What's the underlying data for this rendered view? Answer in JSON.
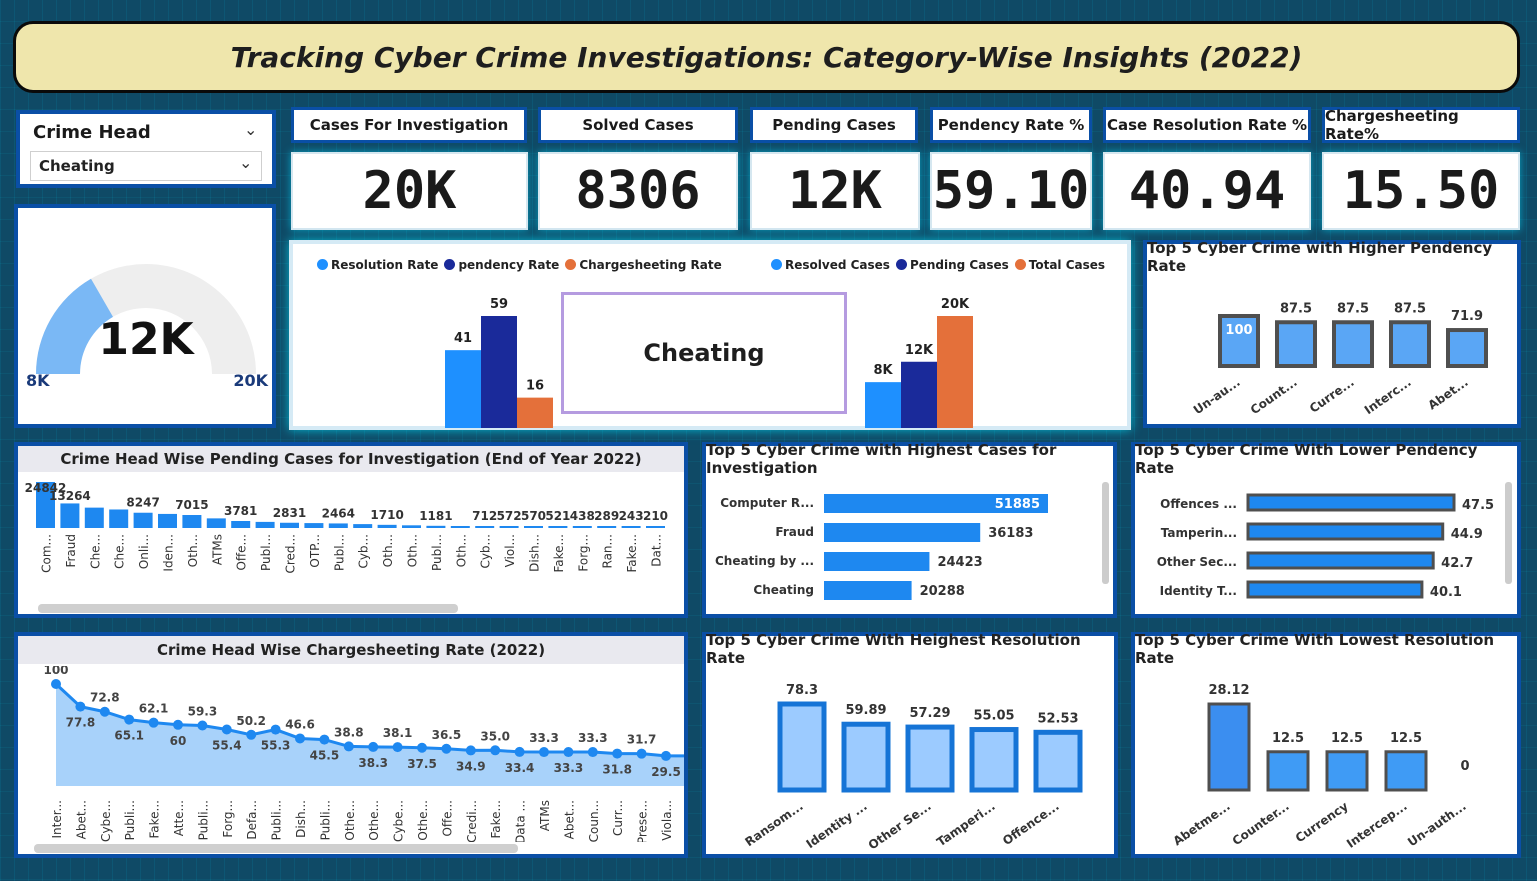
{
  "title": "Tracking Cyber Crime Investigations: Category-Wise Insights (2022)",
  "slicer": {
    "label": "Crime Head",
    "selected": "Cheating"
  },
  "kpis": [
    {
      "label": "Cases For Investigation",
      "value": "20K"
    },
    {
      "label": "Solved Cases",
      "value": "8306"
    },
    {
      "label": "Pending Cases",
      "value": "12K"
    },
    {
      "label": "Pendency Rate %",
      "value": "59.10"
    },
    {
      "label": "Case Resolution Rate %",
      "value": "40.94"
    },
    {
      "label": "Chargesheeting Rate%",
      "value": "15.50"
    }
  ],
  "gauge": {
    "value_label": "12K",
    "min_label": "8K",
    "max_label": "20K",
    "min": 8,
    "max": 20,
    "value": 12
  },
  "selected_card": "Cheating",
  "colors": {
    "light_blue": "#1e90ff",
    "dark_blue": "#1a2a9a",
    "orange": "#e4703a",
    "bar_blue": "#1e88f0",
    "pale_blue": "#8ec8ff"
  },
  "chart_data": [
    {
      "id": "rates",
      "type": "bar",
      "categories": [
        ""
      ],
      "series": [
        {
          "name": "Resolution Rate",
          "values": [
            41
          ],
          "color": "#1e90ff"
        },
        {
          "name": "pendency Rate",
          "values": [
            59
          ],
          "color": "#1a2a9a"
        },
        {
          "name": "Chargesheeting Rate",
          "values": [
            16
          ],
          "color": "#e4703a"
        }
      ],
      "labels": [
        "41",
        "59",
        "16"
      ],
      "ylim": [
        0,
        59
      ]
    },
    {
      "id": "cases",
      "type": "bar",
      "categories": [
        ""
      ],
      "series": [
        {
          "name": "Resolved Cases",
          "values": [
            8306
          ],
          "color": "#1e90ff"
        },
        {
          "name": "Pending Cases",
          "values": [
            12000
          ],
          "color": "#1a2a9a"
        },
        {
          "name": "Total Cases",
          "values": [
            20288
          ],
          "color": "#e4703a"
        }
      ],
      "labels": [
        "8K",
        "12K",
        "20K"
      ],
      "ylim": [
        0,
        20288
      ]
    },
    {
      "id": "higher_pendency",
      "type": "bar",
      "title": "Top 5 Cyber Crime with Higher Pendency Rate",
      "categories": [
        "Un-au...",
        "Count...",
        "Curre...",
        "Interc...",
        "Abet..."
      ],
      "values": [
        100,
        87.5,
        87.5,
        87.5,
        71.9
      ],
      "labels": [
        "100",
        "87.5",
        "87.5",
        "87.5",
        "71.9"
      ],
      "ylim": [
        0,
        100
      ]
    },
    {
      "id": "pending_cases",
      "type": "bar",
      "title": "Crime Head Wise Pending Cases for Investigation (End of Year 2022)",
      "categories": [
        "Com...",
        "Fraud",
        "Che...",
        "Che...",
        "Onli...",
        "Iden...",
        "Oth...",
        "ATMs",
        "Offe...",
        "Publ...",
        "Cred...",
        "OTP...",
        "Publ...",
        "Cyb...",
        "Oth...",
        "Oth...",
        "Publ...",
        "Oth...",
        "Cyb...",
        "Viol...",
        "Dish...",
        "Fake...",
        "Forg...",
        "Ran...",
        "Fake...",
        "Dat..."
      ],
      "values": [
        24842,
        13264,
        null,
        null,
        8247,
        null,
        7015,
        null,
        3781,
        null,
        2831,
        null,
        2464,
        null,
        1710,
        null,
        1181,
        null,
        712,
        572,
        570,
        521,
        438,
        289,
        243,
        210
      ],
      "labels": [
        "24842",
        "13264",
        "",
        "",
        "8247",
        "",
        "7015",
        "",
        "3781",
        "",
        "2831",
        "",
        "2464",
        "",
        "1710",
        "",
        "1181",
        "",
        "712",
        "572",
        "570",
        "521",
        "438",
        "289",
        "243",
        "210"
      ],
      "ylim": [
        0,
        24842
      ]
    },
    {
      "id": "highest_cases",
      "type": "bar",
      "title": "Top 5 Cyber Crime with Highest Cases for Investigation",
      "categories": [
        "Computer R...",
        "Fraud",
        "Cheating by ...",
        "Cheating"
      ],
      "values": [
        51885,
        36183,
        24423,
        20288
      ],
      "labels": [
        "51885",
        "36183",
        "24423",
        "20288"
      ],
      "xlim": [
        0,
        51885
      ]
    },
    {
      "id": "lower_pendency",
      "type": "bar",
      "title": "Top 5 Cyber Crime With Lower Pendency Rate",
      "categories": [
        "Offences ...",
        "Tamperin...",
        "Other Sec...",
        "Identity T..."
      ],
      "values": [
        47.5,
        44.9,
        42.7,
        40.1
      ],
      "labels": [
        "47.5",
        "44.9",
        "42.7",
        "40.1"
      ],
      "xlim": [
        0,
        47.5
      ]
    },
    {
      "id": "chargesheeting",
      "type": "area",
      "title": "Crime Head Wise Chargesheeting Rate (2022)",
      "categories": [
        "Inter...",
        "Abet...",
        "Cybe...",
        "Publi...",
        "Fake...",
        "Atte...",
        "Publi...",
        "Forg...",
        "Defa...",
        "Publi...",
        "Dish...",
        "Publi...",
        "Othe...",
        "Othe...",
        "Cybe...",
        "Othe...",
        "Offe...",
        "Credi...",
        "Fake...",
        "Data ...",
        "ATMs",
        "Abet...",
        "Coun...",
        "Curr...",
        "Prese...",
        "Viola...",
        "Tam..."
      ],
      "values": [
        100,
        77.8,
        72.8,
        65.1,
        62.1,
        60,
        59.3,
        55.4,
        50.2,
        55.3,
        46.6,
        45.5,
        38.8,
        38.3,
        38.1,
        37.5,
        36.5,
        34.9,
        35.0,
        33.4,
        33.3,
        33.3,
        33.3,
        31.8,
        31.7,
        29.5,
        29.5
      ],
      "labels": [
        "100",
        "77.8",
        "72.8",
        "65.1",
        "62.1",
        "60",
        "59.3",
        "55.4",
        "50.2",
        "55.3",
        "46.6",
        "45.5",
        "38.8",
        "38.3",
        "38.1",
        "37.5",
        "36.5",
        "34.9",
        "35.0",
        "33.4",
        "33.3",
        "33.3",
        "33.3",
        "31.8",
        "31.7",
        "29.5",
        ""
      ],
      "ylim": [
        0,
        100
      ]
    },
    {
      "id": "highest_resolution",
      "type": "bar",
      "title": "Top 5 Cyber Crime With Heighest Resolution Rate",
      "categories": [
        "Ransom...",
        "Identity ...",
        "Other Se...",
        "Tamperi...",
        "Offence..."
      ],
      "values": [
        78.3,
        59.89,
        57.29,
        55.05,
        52.53
      ],
      "labels": [
        "78.3",
        "59.89",
        "57.29",
        "55.05",
        "52.53"
      ],
      "ylim": [
        0,
        78.3
      ]
    },
    {
      "id": "lowest_resolution",
      "type": "bar",
      "title": "Top 5 Cyber Crime With Lowest Resolution Rate",
      "categories": [
        "Abetme...",
        "Counter...",
        "Currency",
        "Intercep...",
        "Un-auth..."
      ],
      "values": [
        28.12,
        12.5,
        12.5,
        12.5,
        0
      ],
      "labels": [
        "28.12",
        "12.5",
        "12.5",
        "12.5",
        "0"
      ],
      "ylim": [
        0,
        28.12
      ]
    }
  ]
}
